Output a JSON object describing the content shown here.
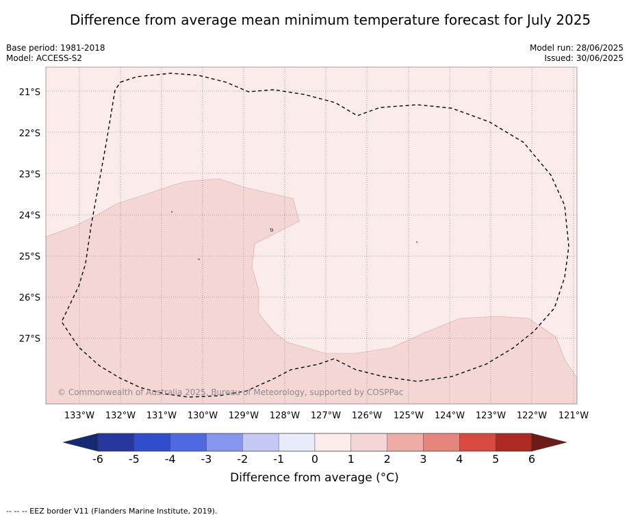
{
  "title": "Difference from average mean minimum temperature forecast for July 2025",
  "meta_left": {
    "base_period": "Base period: 1981-2018",
    "model": "Model: ACCESS-S2"
  },
  "meta_right": {
    "model_run": "Model run: 28/06/2025",
    "issued": "Issued: 30/06/2025"
  },
  "map": {
    "lat_labels": [
      "21°S",
      "22°S",
      "23°S",
      "24°S",
      "25°S",
      "26°S",
      "27°S"
    ],
    "lon_labels": [
      "133°W",
      "132°W",
      "131°W",
      "130°W",
      "129°W",
      "128°W",
      "127°W",
      "126°W",
      "125°W",
      "124°W",
      "123°W",
      "122°W",
      "121°W"
    ],
    "copyright": "© Commonwealth of Australia 2025, Bureau of Meteorology, supported by COSPPac",
    "regions": [
      {
        "category": "0 to 1",
        "color": "#fbeceb"
      },
      {
        "category": "1 to 2",
        "color": "#f4d7d5"
      }
    ],
    "eez_border_color": "#000000"
  },
  "colorbar": {
    "ticks": [
      "-6",
      "-5",
      "-4",
      "-3",
      "-2",
      "-1",
      "0",
      "1",
      "2",
      "3",
      "4",
      "5",
      "6"
    ],
    "colors": [
      "#26389f",
      "#2f4dcd",
      "#4f69e0",
      "#8496ee",
      "#c3c9f4",
      "#e8ebfa",
      "#fcedeb",
      "#f4d7d5",
      "#edaca6",
      "#e6857d",
      "#d84a40",
      "#ad2a22"
    ],
    "under_color": "#152a73",
    "over_color": "#6e1a16",
    "label": "Difference from average (°C)"
  },
  "footer": "--  --  -- EEZ border V11 (Flanders Marine Institute, 2019)."
}
